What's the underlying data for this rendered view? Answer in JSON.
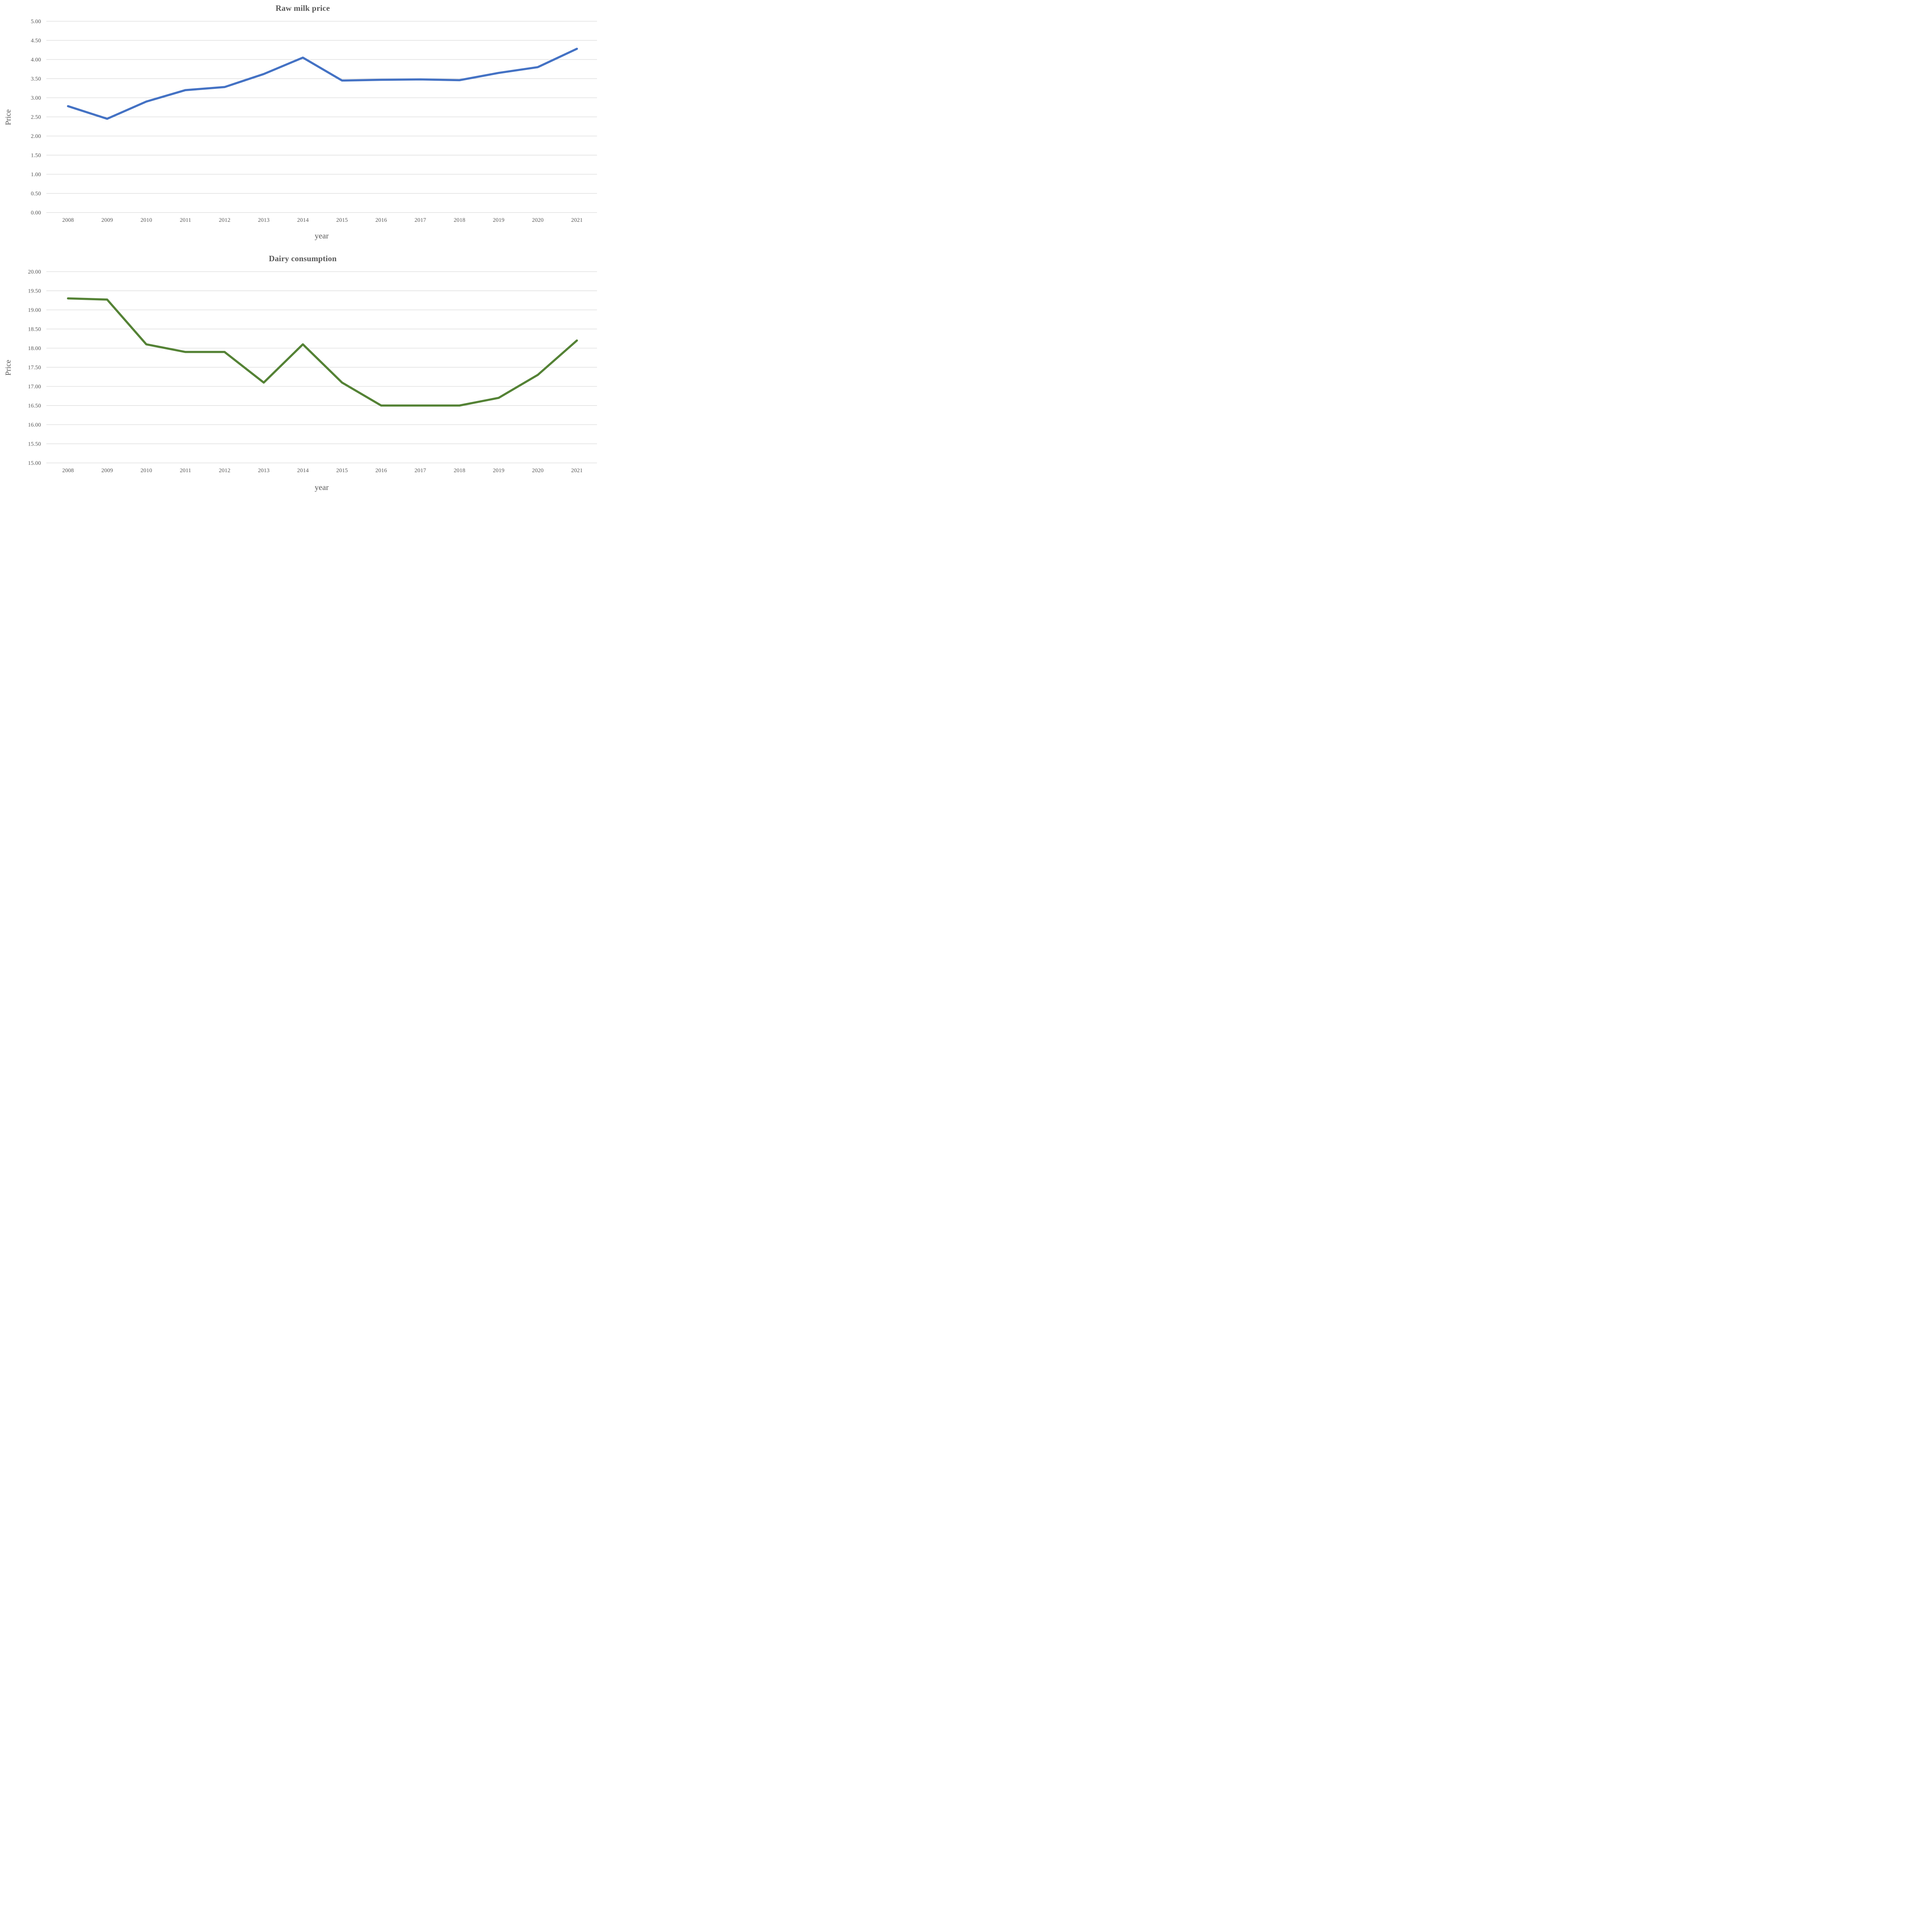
{
  "charts_meta": {
    "count": 2,
    "text_color": "#595959",
    "gridline_color": "#D9D9D9",
    "background_color": "#ffffff"
  },
  "chart_data": [
    {
      "type": "line",
      "title": "Raw milk price",
      "xlabel": "year",
      "ylabel": "Price",
      "categories": [
        "2008",
        "2009",
        "2010",
        "2011",
        "2012",
        "2013",
        "2014",
        "2015",
        "2016",
        "2017",
        "2018",
        "2019",
        "2020",
        "2021"
      ],
      "values": [
        2.78,
        2.45,
        2.9,
        3.2,
        3.28,
        3.62,
        4.05,
        3.45,
        3.47,
        3.48,
        3.46,
        3.65,
        3.8,
        4.28
      ],
      "ylim": [
        0.0,
        5.0
      ],
      "ytick_step": 0.5,
      "ytick_labels": [
        "0.00",
        "0.50",
        "1.00",
        "1.50",
        "2.00",
        "2.50",
        "3.00",
        "3.50",
        "4.00",
        "4.50",
        "5.00"
      ],
      "line_color": "#4472C4",
      "grid": "horizontal",
      "legend_position": "none"
    },
    {
      "type": "line",
      "title": "Dairy consumption",
      "xlabel": "year",
      "ylabel": "Price",
      "categories": [
        "2008",
        "2009",
        "2010",
        "2011",
        "2012",
        "2013",
        "2014",
        "2015",
        "2016",
        "2017",
        "2018",
        "2019",
        "2020",
        "2021"
      ],
      "values": [
        19.3,
        19.27,
        18.1,
        17.9,
        17.9,
        17.1,
        18.1,
        17.1,
        16.5,
        16.5,
        16.5,
        16.7,
        17.3,
        18.2
      ],
      "ylim": [
        15.0,
        20.0
      ],
      "ytick_step": 0.5,
      "ytick_labels": [
        "15.00",
        "15.50",
        "16.00",
        "16.50",
        "17.00",
        "17.50",
        "18.00",
        "18.50",
        "19.00",
        "19.50",
        "20.00"
      ],
      "line_color": "#548235",
      "grid": "horizontal",
      "legend_position": "none"
    }
  ]
}
